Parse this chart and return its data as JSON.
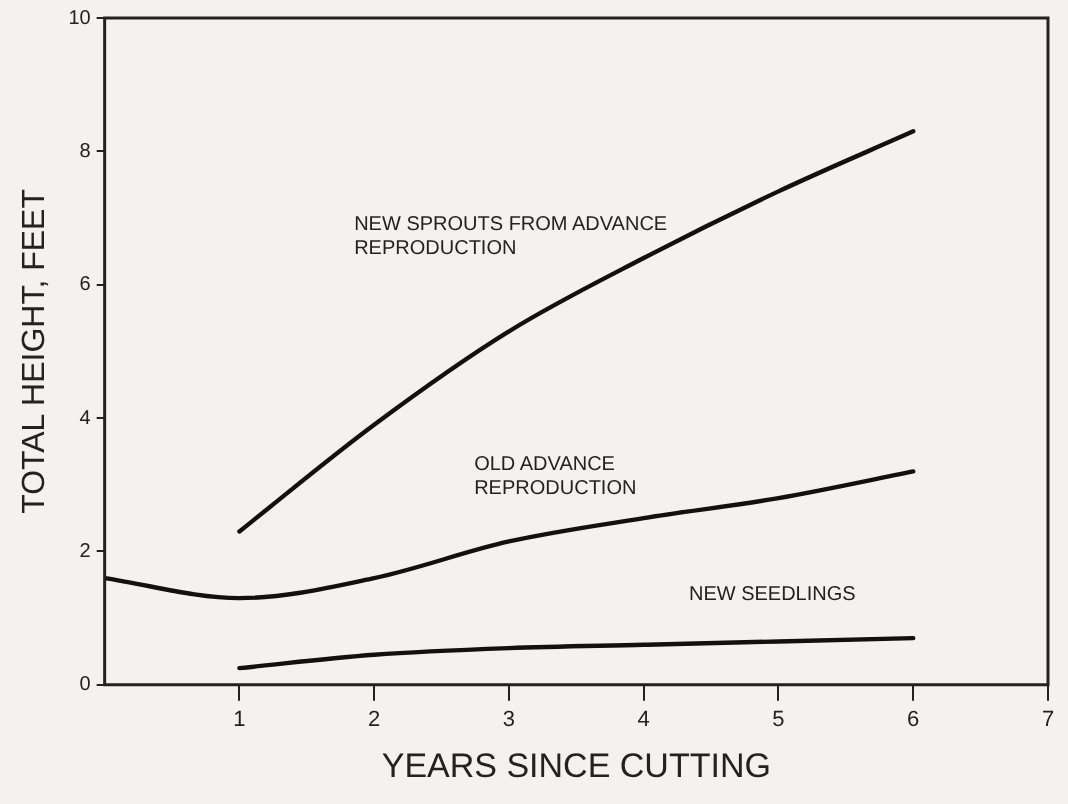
{
  "chart_data": {
    "type": "line",
    "xlabel": "YEARS SINCE CUTTING",
    "ylabel": "TOTAL HEIGHT, FEET",
    "xlim": [
      0,
      7
    ],
    "xticks": [
      1,
      2,
      3,
      4,
      5,
      6,
      7
    ],
    "ylim": [
      0,
      10
    ],
    "yticks": [
      0,
      2,
      4,
      6,
      8,
      10
    ],
    "grid": false,
    "legend": false,
    "marker": "none",
    "line_style": "solid",
    "series": [
      {
        "name": "NEW SPROUTS FROM ADVANCE REPRODUCTION",
        "color": "#111111",
        "x": [
          1,
          2,
          3,
          4,
          5,
          6
        ],
        "values": [
          2.3,
          3.9,
          5.3,
          6.4,
          7.4,
          8.3
        ]
      },
      {
        "name": "OLD ADVANCE REPRODUCTION",
        "color": "#111111",
        "x": [
          0,
          1,
          2,
          3,
          4,
          5,
          6
        ],
        "values": [
          1.6,
          1.3,
          1.6,
          2.15,
          2.5,
          2.8,
          3.2
        ]
      },
      {
        "name": "NEW SEEDLINGS",
        "color": "#111111",
        "x": [
          1,
          2,
          3,
          4,
          5,
          6
        ],
        "values": [
          0.25,
          0.45,
          0.55,
          0.6,
          0.65,
          0.7
        ]
      }
    ]
  }
}
